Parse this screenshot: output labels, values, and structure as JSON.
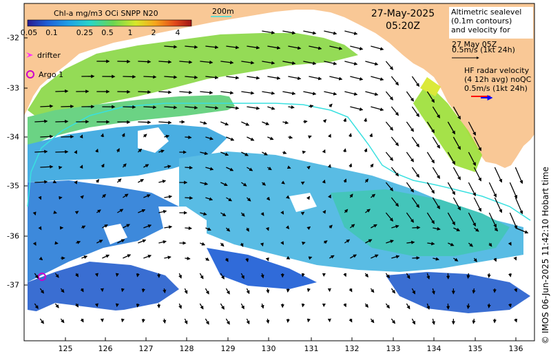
{
  "map": {
    "lon_range": [
      124,
      136.5
    ],
    "lat_range": [
      -38,
      -31.7
    ],
    "x_ticks": [
      "125",
      "126",
      "127",
      "128",
      "129",
      "130",
      "131",
      "132",
      "133",
      "134",
      "135",
      "136"
    ],
    "y_ticks": [
      "-32",
      "-33",
      "-34",
      "-35",
      "-36",
      "-37"
    ],
    "land_color": "#f9c896",
    "ocean_color": "#ffffff"
  },
  "header": {
    "date": "27-May-2025",
    "time": "05:20Z",
    "scale_label": "200m"
  },
  "colorbar": {
    "title": "Chl-a mg/m3 OCi SNPP N20",
    "ticks": [
      "0.05",
      "0.1",
      "0.25",
      "0.5",
      "1",
      "2",
      "4"
    ],
    "colors": [
      "#2a1b8f",
      "#1f5fd6",
      "#1fa0e6",
      "#27d6c9",
      "#6ad651",
      "#d8e829",
      "#f7a51b",
      "#e2491a",
      "#a01414"
    ]
  },
  "legend": {
    "drifter_label": "drifter",
    "argo_label": "Argo 1",
    "drifter_color": "#ff2cff",
    "argo_color": "#cc00cc"
  },
  "altimetry": {
    "line1": "Altimetric sealevel",
    "line2": "(0.1m contours)",
    "line3": "and velocity for",
    "line4": "27 May 05Z",
    "line5": "0.5m/s (1kt 24h)"
  },
  "hf_radar": {
    "line1": "HF radar velocity",
    "line2": "(4 12h avg) noQC",
    "line3": "0.5m/s (1kt 24h)",
    "arrow_colors": [
      "#ff0000",
      "#0000ff"
    ]
  },
  "credit": "© IMOS 06-Jun-2025 11:42:10 Hobart time",
  "argo_float": {
    "lon": 124.45,
    "lat": -36.8,
    "label": "Argo 1"
  },
  "contour_200m_color": "#39e0e0"
}
